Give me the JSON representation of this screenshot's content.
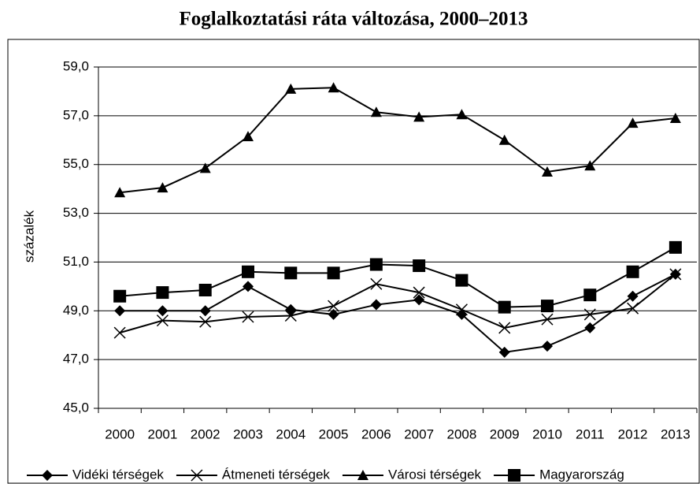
{
  "chart_data": {
    "type": "line",
    "title": "Foglalkoztatási ráta változása, 2000–2013",
    "y_label": "százalék",
    "categories": [
      "2000",
      "2001",
      "2002",
      "2003",
      "2004",
      "2005",
      "2006",
      "2007",
      "2008",
      "2009",
      "2010",
      "2011",
      "2012",
      "2013"
    ],
    "series": [
      {
        "name": "Vidéki térségek",
        "color": "#000000",
        "marker": "diamond",
        "values": [
          49.0,
          49.0,
          49.0,
          50.0,
          49.05,
          48.85,
          49.25,
          49.45,
          48.85,
          47.3,
          47.55,
          48.3,
          49.6,
          50.5
        ]
      },
      {
        "name": "Átmeneti térségek",
        "color": "#000000",
        "marker": "x",
        "values": [
          48.1,
          48.6,
          48.55,
          48.75,
          48.8,
          49.2,
          50.1,
          49.75,
          49.05,
          48.3,
          48.65,
          48.85,
          49.1,
          50.5
        ]
      },
      {
        "name": "Városi térségek",
        "color": "#000000",
        "marker": "triangle",
        "values": [
          53.85,
          54.05,
          54.85,
          56.15,
          58.1,
          58.15,
          57.15,
          56.95,
          57.05,
          56.0,
          54.7,
          54.95,
          56.7,
          56.9
        ]
      },
      {
        "name": "Magyarország",
        "color": "#000000",
        "marker": "square",
        "values": [
          49.6,
          49.75,
          49.85,
          50.6,
          50.55,
          50.55,
          50.9,
          50.85,
          50.25,
          49.15,
          49.2,
          49.65,
          50.6,
          51.6
        ]
      }
    ],
    "ylim": [
      45,
      59
    ],
    "yticks": [
      {
        "value": 45,
        "label": "45,0"
      },
      {
        "value": 47,
        "label": "47,0"
      },
      {
        "value": 49,
        "label": "49,0"
      },
      {
        "value": 51,
        "label": "51,0"
      },
      {
        "value": 53,
        "label": "53,0"
      },
      {
        "value": 55,
        "label": "55,0"
      },
      {
        "value": 57,
        "label": "57,0"
      },
      {
        "value": 59,
        "label": "59,0"
      }
    ],
    "grid": true,
    "legend": "bottom"
  }
}
